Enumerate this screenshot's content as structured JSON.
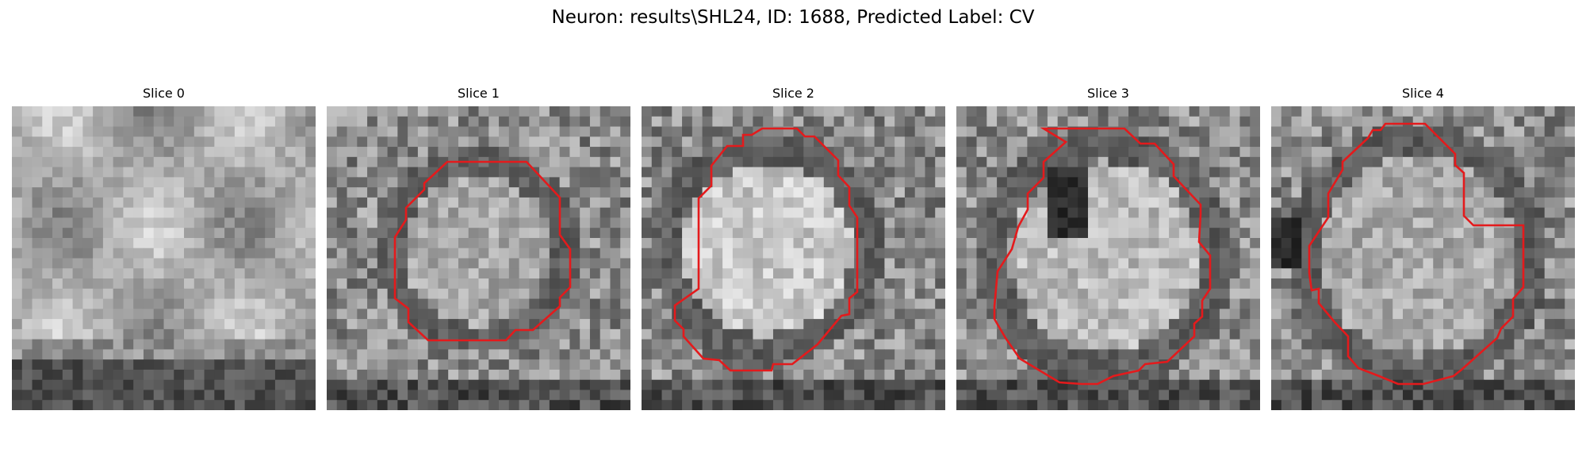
{
  "figure": {
    "title": "Neuron: results\\SHL24, ID: 1688, Predicted Label: CV"
  },
  "slices": [
    {
      "title": "Slice 0",
      "has_contour": false
    },
    {
      "title": "Slice 1",
      "has_contour": true
    },
    {
      "title": "Slice 2",
      "has_contour": true
    },
    {
      "title": "Slice 3",
      "has_contour": true
    },
    {
      "title": "Slice 4",
      "has_contour": true
    }
  ],
  "colors": {
    "contour": "#e41a1c",
    "background": "#ffffff"
  }
}
